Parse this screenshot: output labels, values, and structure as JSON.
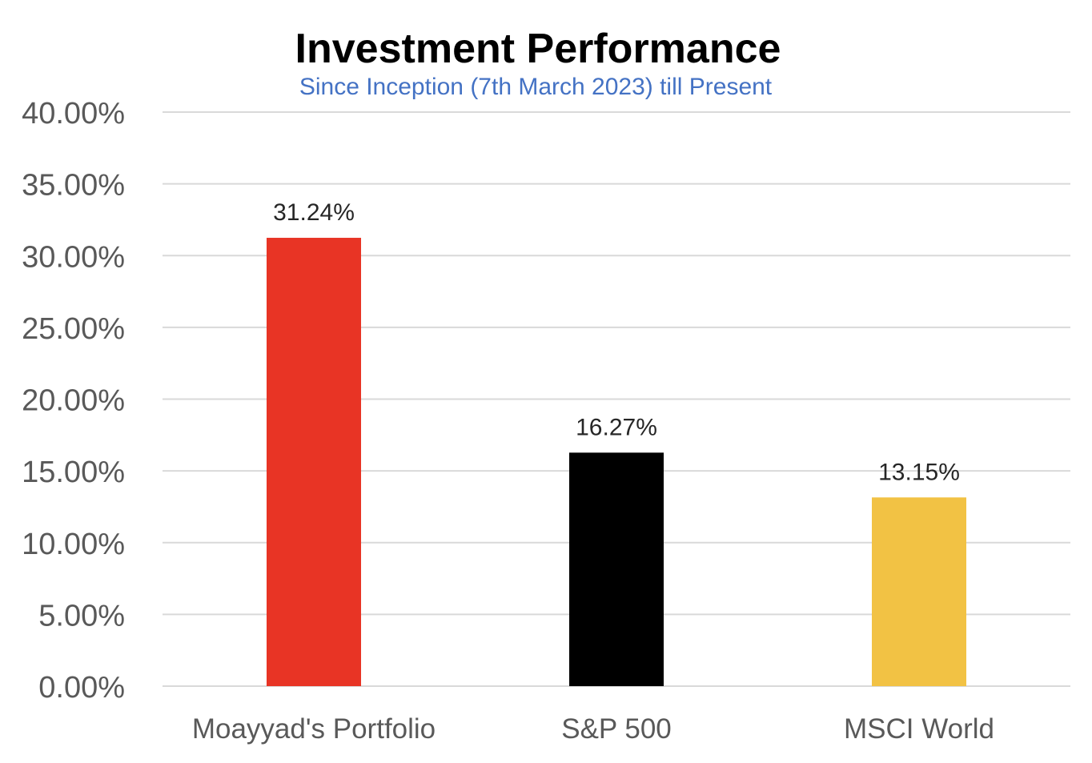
{
  "chart_data": {
    "type": "bar",
    "title": "Investment Performance",
    "subtitle": "Since Inception (7th March 2023) till Present",
    "categories": [
      "Moayyad's Portfolio",
      "S&P 500",
      "MSCI World"
    ],
    "values": [
      31.24,
      16.27,
      13.15
    ],
    "data_labels": [
      "31.24%",
      "16.27%",
      "13.15%"
    ],
    "bar_colors": [
      "#e83425",
      "#000000",
      "#f2c244"
    ],
    "ylim": [
      0,
      40
    ],
    "yticks": [
      0,
      5,
      10,
      15,
      20,
      25,
      30,
      35,
      40
    ],
    "ytick_labels": [
      "0.00%",
      "5.00%",
      "10.00%",
      "15.00%",
      "20.00%",
      "25.00%",
      "30.00%",
      "35.00%",
      "40.00%"
    ],
    "xlabel": "",
    "ylabel": "",
    "grid": true,
    "legend": "none"
  },
  "colors": {
    "title": "#000000",
    "subtitle": "#4472c4",
    "tick_text": "#595959",
    "data_label_text": "#262626",
    "gridline": "#d9d9d9"
  }
}
